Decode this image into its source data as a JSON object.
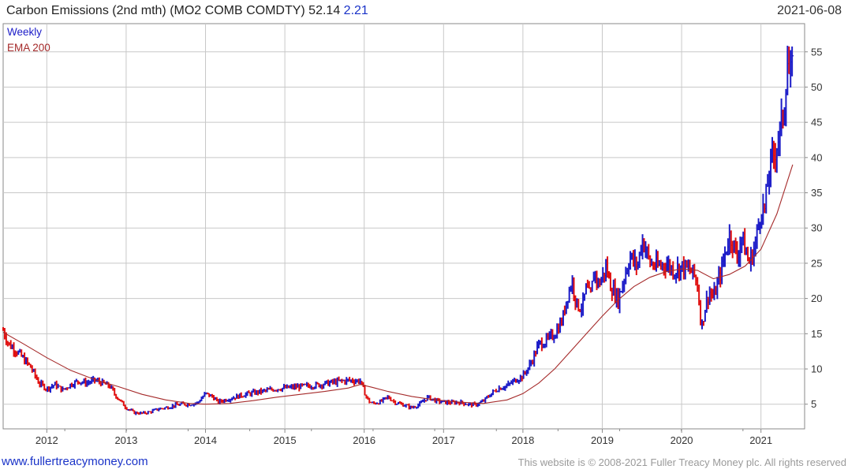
{
  "header": {
    "title": "Carbon Emissions (2nd mth) (MO2 COMB COMDTY) 52.14",
    "change": "2.21",
    "date": "2021-06-08"
  },
  "legend": {
    "weekly": "Weekly",
    "ema": "EMA 200"
  },
  "footer": {
    "link": "www.fullertreacymoney.com",
    "copyright": "This website is © 2008-2021 Fuller Treacy Money plc. All rights reserved"
  },
  "colors": {
    "up": "#1c1cc8",
    "down": "#e01010",
    "ema": "#a52a2a",
    "grid": "#c8c8c8",
    "frame": "#8a8a8a"
  },
  "chart_data": {
    "type": "line",
    "title": "Carbon Emissions (2nd mth) (MO2 COMB COMDTY)",
    "subtitle": "Weekly",
    "xlabel": "",
    "ylabel": "",
    "x_range": [
      2011.45,
      2021.55
    ],
    "ylim": [
      1.5,
      59
    ],
    "x_ticks": [
      "2012",
      "2013",
      "2014",
      "2015",
      "2016",
      "2017",
      "2018",
      "2019",
      "2020",
      "2021"
    ],
    "y_ticks": [
      5,
      10,
      15,
      20,
      25,
      30,
      35,
      40,
      45,
      50,
      55
    ],
    "grid": true,
    "legend_position": "top-left",
    "series": [
      {
        "name": "Weekly",
        "style": "bars",
        "x": [
          2011.45,
          2011.52,
          2011.6,
          2011.7,
          2011.8,
          2011.9,
          2012.0,
          2012.1,
          2012.2,
          2012.3,
          2012.4,
          2012.5,
          2012.6,
          2012.7,
          2012.8,
          2012.85,
          2012.9,
          2013.0,
          2013.1,
          2013.2,
          2013.3,
          2013.4,
          2013.5,
          2013.6,
          2013.7,
          2013.8,
          2013.9,
          2014.0,
          2014.1,
          2014.15,
          2014.3,
          2014.5,
          2014.7,
          2014.9,
          2015.0,
          2015.2,
          2015.4,
          2015.6,
          2015.8,
          2015.95,
          2016.0,
          2016.05,
          2016.1,
          2016.2,
          2016.3,
          2016.4,
          2016.5,
          2016.6,
          2016.7,
          2016.8,
          2016.9,
          2017.0,
          2017.1,
          2017.2,
          2017.3,
          2017.4,
          2017.5,
          2017.6,
          2017.7,
          2017.8,
          2017.9,
          2018.0,
          2018.1,
          2018.2,
          2018.3,
          2018.4,
          2018.5,
          2018.55,
          2018.62,
          2018.68,
          2018.75,
          2018.8,
          2018.85,
          2018.9,
          2018.95,
          2019.0,
          2019.05,
          2019.1,
          2019.2,
          2019.3,
          2019.35,
          2019.4,
          2019.45,
          2019.5,
          2019.55,
          2019.6,
          2019.7,
          2019.8,
          2019.9,
          2020.0,
          2020.1,
          2020.15,
          2020.2,
          2020.25,
          2020.3,
          2020.35,
          2020.4,
          2020.5,
          2020.6,
          2020.65,
          2020.7,
          2020.75,
          2020.8,
          2020.85,
          2020.9,
          2020.95,
          2021.0,
          2021.05,
          2021.1,
          2021.15,
          2021.2,
          2021.25,
          2021.3,
          2021.33,
          2021.36,
          2021.4
        ],
        "close": [
          15.5,
          13.5,
          12.8,
          11.5,
          10.2,
          8.0,
          7.2,
          7.8,
          7.0,
          7.8,
          8.3,
          8.0,
          8.4,
          8.0,
          7.5,
          6.5,
          5.8,
          4.5,
          3.8,
          3.7,
          3.9,
          4.3,
          4.5,
          4.8,
          5.0,
          5.0,
          5.2,
          6.5,
          6.0,
          5.3,
          5.8,
          6.4,
          6.8,
          7.2,
          7.3,
          7.5,
          7.7,
          8.1,
          8.4,
          8.3,
          6.8,
          5.5,
          5.1,
          5.3,
          6.0,
          5.2,
          4.9,
          4.5,
          5.0,
          6.0,
          5.5,
          5.3,
          5.2,
          5.3,
          5.0,
          4.9,
          5.4,
          6.5,
          7.3,
          7.6,
          8.4,
          9.0,
          10.8,
          13.5,
          14.0,
          15.0,
          17.0,
          20.0,
          22.5,
          19.0,
          18.8,
          21.5,
          20.0,
          24.0,
          22.0,
          23.0,
          24.5,
          22.0,
          19.8,
          24.0,
          26.0,
          25.0,
          24.8,
          28.5,
          27.0,
          25.0,
          24.5,
          25.0,
          24.0,
          24.5,
          24.0,
          23.5,
          22.0,
          15.8,
          19.0,
          21.0,
          20.0,
          24.0,
          29.0,
          28.0,
          25.5,
          29.0,
          27.0,
          25.0,
          26.5,
          29.0,
          33.0,
          32.5,
          38.0,
          40.0,
          42.0,
          44.0,
          48.0,
          54.5,
          51.0,
          52.14
        ]
      },
      {
        "name": "EMA 200",
        "style": "line",
        "x": [
          2011.45,
          2011.7,
          2012.0,
          2012.3,
          2012.6,
          2012.9,
          2013.2,
          2013.5,
          2013.8,
          2014.0,
          2014.3,
          2014.6,
          2014.9,
          2015.2,
          2015.5,
          2015.8,
          2015.95,
          2016.1,
          2016.3,
          2016.6,
          2016.9,
          2017.2,
          2017.5,
          2017.8,
          2018.0,
          2018.2,
          2018.4,
          2018.6,
          2018.8,
          2019.0,
          2019.2,
          2019.4,
          2019.6,
          2019.8,
          2020.0,
          2020.2,
          2020.4,
          2020.6,
          2020.8,
          2021.0,
          2021.2,
          2021.4
        ],
        "values": [
          15.2,
          13.6,
          11.6,
          9.8,
          8.5,
          7.5,
          6.4,
          5.6,
          5.1,
          5.0,
          5.1,
          5.5,
          6.0,
          6.4,
          6.8,
          7.3,
          7.8,
          7.4,
          6.8,
          6.1,
          5.6,
          5.3,
          5.1,
          5.6,
          6.5,
          8.0,
          10.0,
          12.5,
          15.0,
          17.5,
          19.8,
          21.7,
          23.0,
          23.8,
          24.2,
          24.0,
          22.8,
          23.4,
          24.6,
          27.0,
          32.0,
          39.0
        ]
      }
    ]
  }
}
